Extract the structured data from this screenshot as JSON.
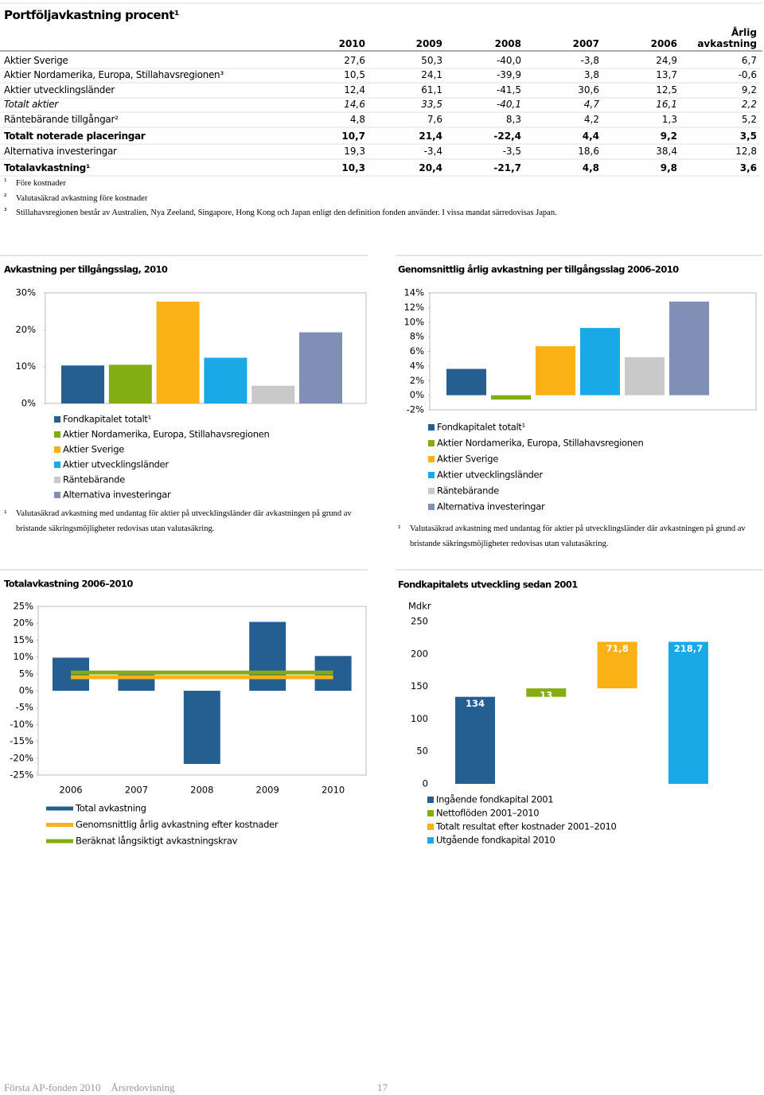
{
  "table": {
    "title": "Portföljavkastning procent¹",
    "columns": [
      "2010",
      "2009",
      "2008",
      "2007",
      "2006",
      "Årlig avkastning"
    ],
    "rows": [
      [
        "Aktier Sverige",
        "27,6",
        "50,3",
        "-40,0",
        "-3,8",
        "24,9",
        "6,7"
      ],
      [
        "Aktier Nordamerika, Europa, Stillahavsregionen³",
        "10,5",
        "24,1",
        "-39,9",
        "3,8",
        "13,7",
        "-0,6"
      ],
      [
        "Aktier utvecklingsländer",
        "12,4",
        "61,1",
        "-41,5",
        "30,6",
        "12,5",
        "9,2"
      ],
      [
        "Totalt aktier",
        "14,6",
        "33,5",
        "-40,1",
        "4,7",
        "16,1",
        "2,2"
      ],
      [
        "Räntebärande tillgångar²",
        "4,8",
        "7,6",
        "8,3",
        "4,2",
        "1,3",
        "5,2"
      ],
      [
        "Totalt noterade placeringar",
        "10,7",
        "21,4",
        "-22,4",
        "4,4",
        "9,2",
        "3,5"
      ],
      [
        "Alternativa investeringar",
        "19,3",
        "-3,4",
        "-3,5",
        "18,6",
        "38,4",
        "12,8"
      ],
      [
        "Totalavkastning¹",
        "10,3",
        "20,4",
        "-21,7",
        "4,8",
        "9,8",
        "3,6"
      ]
    ],
    "footnotes": [
      [
        "¹",
        "Före kostnader"
      ],
      [
        "²",
        "Valutasäkrad avkastning före kostnader"
      ],
      [
        "³",
        "Stillahavsregionen består av Australien, Nya Zeeland, Singapore, Hong Kong och Japan enligt den definition fonden använder. I vissa mandat särredovisas Japan."
      ]
    ]
  },
  "chart_data": [
    {
      "type": "bar",
      "title": "Avkastning per tillgångsslag, 2010",
      "ylim": [
        0,
        30
      ],
      "yticks": [
        {
          "value": 0,
          "label": "0%"
        },
        {
          "value": 10,
          "label": "10%"
        },
        {
          "value": 20,
          "label": "20%"
        },
        {
          "value": 30,
          "label": "30%"
        }
      ],
      "series": [
        {
          "name": "Fondkapitalet totalt¹",
          "color": "#255e91",
          "values": [
            10.3
          ]
        },
        {
          "name": "Aktier Nordamerika, Europa, Stillahavsregionen",
          "color": "#84ad13",
          "values": [
            10.5
          ]
        },
        {
          "name": "Aktier Sverige",
          "color": "#f9b115",
          "values": [
            27.6
          ]
        },
        {
          "name": "Aktier utvecklingsländer",
          "color": "#18a9e6",
          "values": [
            12.4
          ]
        },
        {
          "name": "Räntebärande",
          "color": "#c9c9c9",
          "values": [
            4.8
          ]
        },
        {
          "name": "Alternativa investeringar",
          "color": "#7f8fb5",
          "values": [
            19.3
          ]
        }
      ],
      "note_marker": "¹",
      "note": "Valutasäkrad avkastning med undantag för aktier på utvecklingsländer där avkastningen på grund av bristande säkringsmöjligheter redovisas utan valutasäkring."
    },
    {
      "type": "bar",
      "title": "Genomsnittlig årlig avkastning per tillgångsslag 2006–2010",
      "ylim": [
        -2,
        14
      ],
      "yticks": [
        {
          "value": -2,
          "label": "-2%"
        },
        {
          "value": 0,
          "label": "0%"
        },
        {
          "value": 2,
          "label": "2%"
        },
        {
          "value": 4,
          "label": "4%"
        },
        {
          "value": 6,
          "label": "6%"
        },
        {
          "value": 8,
          "label": "8%"
        },
        {
          "value": 10,
          "label": "10%"
        },
        {
          "value": 12,
          "label": "12%"
        },
        {
          "value": 14,
          "label": "14%"
        }
      ],
      "series": [
        {
          "name": "Fondkapitalet totalt¹",
          "color": "#255e91",
          "values": [
            3.6
          ]
        },
        {
          "name": "Aktier Nordamerika, Europa, Stillahavsregionen",
          "color": "#84ad13",
          "values": [
            -0.6
          ]
        },
        {
          "name": "Aktier Sverige",
          "color": "#f9b115",
          "values": [
            6.7
          ]
        },
        {
          "name": "Aktier utvecklingsländer",
          "color": "#18a9e6",
          "values": [
            9.2
          ]
        },
        {
          "name": "Räntebärande",
          "color": "#c9c9c9",
          "values": [
            5.2
          ]
        },
        {
          "name": "Alternativa investeringar",
          "color": "#7f8fb5",
          "values": [
            12.8
          ]
        }
      ],
      "note_marker": "¹",
      "note": "Valutasäkrad avkastning med undantag för aktier på utvecklingsländer där avkastningen på grund av bristande säkringsmöjligheter redovisas utan valutasäkring."
    },
    {
      "type": "bar",
      "title": "Totalavkastning 2006–2010",
      "categories": [
        "2006",
        "2007",
        "2008",
        "2009",
        "2010"
      ],
      "ylim": [
        -25,
        25
      ],
      "yticks": [
        {
          "value": -25,
          "label": "-25%"
        },
        {
          "value": -20,
          "label": "-20%"
        },
        {
          "value": -15,
          "label": "-15%"
        },
        {
          "value": -10,
          "label": "-10%"
        },
        {
          "value": -5,
          "label": "-5%"
        },
        {
          "value": 0,
          "label": "0%"
        },
        {
          "value": 5,
          "label": "5%"
        },
        {
          "value": 10,
          "label": "10%"
        },
        {
          "value": 15,
          "label": "15%"
        },
        {
          "value": 20,
          "label": "20%"
        },
        {
          "value": 25,
          "label": "25%"
        }
      ],
      "series": [
        {
          "name": "Total avkastning",
          "color": "#255e91",
          "values": [
            9.8,
            4.8,
            -21.7,
            20.4,
            10.3
          ]
        },
        {
          "name": "Genomsnittlig årlig avkastning efter kostnader",
          "type": "line",
          "color": "#f9b115",
          "values": [
            4.0,
            4.0,
            4.0,
            4.0,
            4.0
          ]
        },
        {
          "name": "Beräknat långsiktigt avkastningskrav",
          "type": "line",
          "color": "#84ad13",
          "values": [
            5.4,
            5.4,
            5.4,
            5.4,
            5.4
          ]
        }
      ]
    },
    {
      "type": "waterfall",
      "title": "Fondkapitalets utveckling sedan 2001",
      "y_label": "Mdkr",
      "ylim": [
        0,
        250
      ],
      "yticks": [
        0,
        50,
        100,
        150,
        200,
        250
      ],
      "series": [
        {
          "name": "Ingående fondkapital 2001",
          "color": "#255e91",
          "values": [
            134
          ],
          "value_labels": [
            "134"
          ]
        },
        {
          "name": "Nettoflöden 2001–2010",
          "color": "#84ad13",
          "values": [
            13
          ],
          "value_labels": [
            "13"
          ]
        },
        {
          "name": "Totalt resultat efter kostnader 2001–2010",
          "color": "#f9b115",
          "values": [
            71.8
          ],
          "value_labels": [
            "71,8"
          ]
        },
        {
          "name": "Utgående fondkapital 2010",
          "color": "#18a9e6",
          "values": [
            218.7
          ],
          "value_labels": [
            "218,7"
          ]
        }
      ]
    }
  ],
  "footer": {
    "text": "Första AP-fonden 2010    Årsredovisning",
    "page": "17"
  }
}
